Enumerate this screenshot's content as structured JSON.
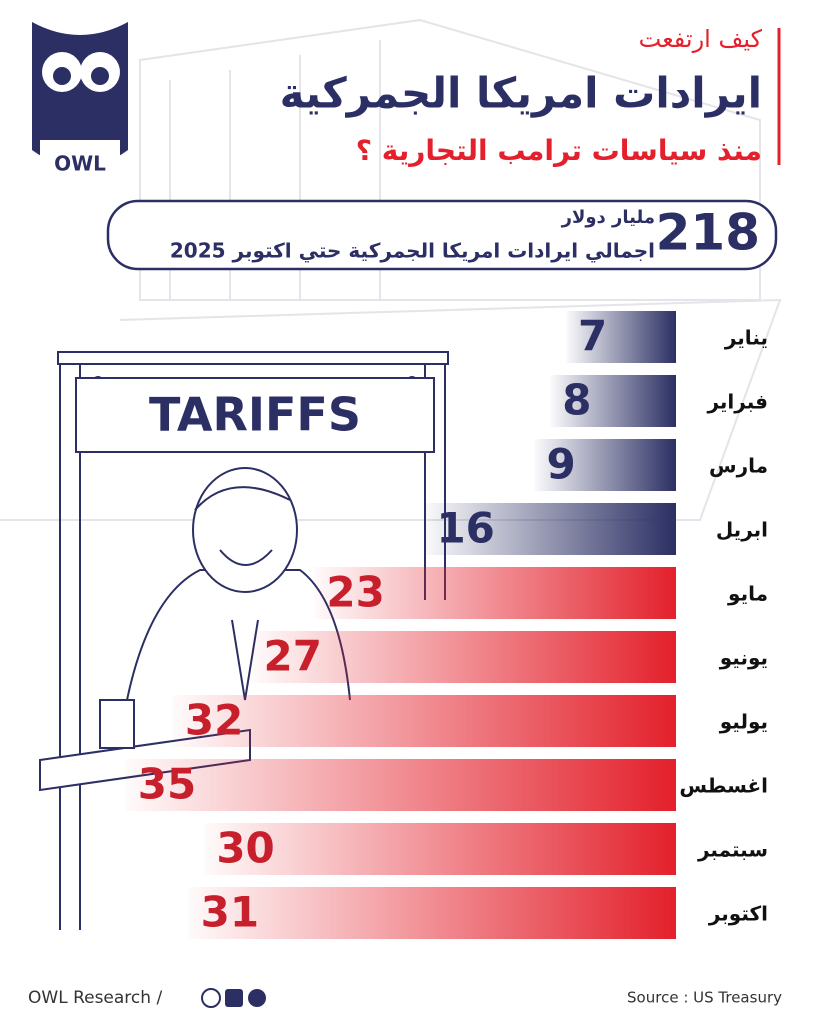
{
  "chart_data": {
    "type": "bar",
    "kicker": "كيف ارتفعت",
    "title": "ايرادات امريكا الجمركية",
    "subtitle": "منذ سياسات ترامب التجارية ؟",
    "total": 218,
    "total_unit": "مليار دولار",
    "total_caption": "اجمالي ايرادات امريكا الجمركية حتي اكتوبر 2025",
    "categories": [
      "يناير",
      "فبراير",
      "مارس",
      "ابريل",
      "مايو",
      "يونيو",
      "يوليو",
      "اغسطس",
      "سبتمبر",
      "اكتوبر"
    ],
    "values": [
      7,
      8,
      9,
      16,
      23,
      27,
      32,
      35,
      30,
      31
    ],
    "colors": [
      "#2b2f63",
      "#2b2f63",
      "#2b2f63",
      "#2b2f63",
      "#e3202b",
      "#e3202b",
      "#e3202b",
      "#e3202b",
      "#e3202b",
      "#e3202b"
    ],
    "xlim": [
      0,
      36
    ],
    "logo": "OWL",
    "sign": "TARIFFS",
    "footer_left": "OWL Research /",
    "source": "Source : US Treasury"
  }
}
